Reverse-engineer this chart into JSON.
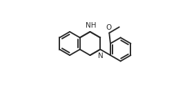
{
  "background_color": "#ffffff",
  "line_color": "#2a2a2a",
  "line_width": 1.4,
  "font_size": 7.5,
  "figsize": [
    2.84,
    1.26
  ],
  "dpi": 100,
  "r": 0.135,
  "xlim": [
    0.0,
    1.0
  ],
  "ylim": [
    0.0,
    1.0
  ],
  "NH_label": "NH",
  "N_label": "N",
  "O_label": "O"
}
